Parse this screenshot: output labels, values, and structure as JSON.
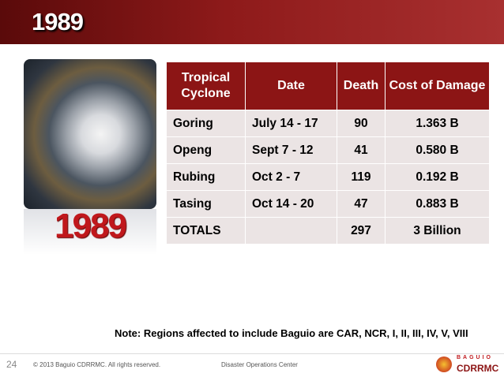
{
  "header": {
    "title": "1989"
  },
  "image": {
    "caption": "1989"
  },
  "table": {
    "columns": [
      "Tropical Cyclone",
      "Date",
      "Death",
      "Cost of Damage"
    ],
    "rows": [
      [
        "Goring",
        "July 14 - 17",
        "90",
        "1.363 B"
      ],
      [
        "Openg",
        "Sept 7 - 12",
        "41",
        "0.580 B"
      ],
      [
        "Rubing",
        "Oct 2 - 7",
        "119",
        "0.192 B"
      ],
      [
        "Tasing",
        "Oct 14 - 20",
        "47",
        "0.883 B"
      ],
      [
        "TOTALS",
        "",
        "297",
        "3 Billion"
      ]
    ]
  },
  "note": "Note: Regions affected to include Baguio are CAR, NCR, I, II, III, IV, V, VIII",
  "footer": {
    "page": "24",
    "copyright": "© 2013 Baguio CDRRMC. All rights reserved.",
    "center": "Disaster Operations Center",
    "logo_top": "BAGUIO",
    "logo_bottom": "CDRRMC"
  }
}
